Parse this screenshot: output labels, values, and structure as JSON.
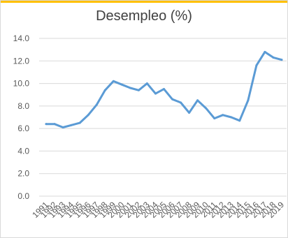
{
  "chart_data": {
    "type": "line",
    "title": "Desempleo (%)",
    "xlabel": "",
    "ylabel": "",
    "ylim": [
      0,
      14
    ],
    "yticks": [
      "0.0",
      "2.0",
      "4.0",
      "6.0",
      "8.0",
      "10.0",
      "12.0",
      "14.0"
    ],
    "grid": true,
    "legend": "none",
    "x": [
      "1991",
      "1992",
      "1993",
      "1994",
      "1995",
      "1996",
      "1997",
      "1998",
      "1999",
      "2000",
      "2001",
      "2002",
      "2003",
      "2004",
      "2005",
      "2006",
      "2007",
      "2008",
      "2009",
      "2010",
      "2011",
      "2012",
      "2013",
      "2014",
      "2015",
      "2016",
      "2017",
      "2018",
      "2019"
    ],
    "series": [
      {
        "values": [
          6.4,
          6.4,
          6.1,
          6.3,
          6.5,
          7.2,
          8.1,
          9.4,
          10.2,
          9.9,
          9.6,
          9.4,
          10.0,
          9.1,
          9.5,
          8.6,
          8.3,
          7.4,
          8.5,
          7.8,
          6.9,
          7.2,
          7.0,
          6.7,
          8.5,
          11.6,
          12.8,
          12.3,
          12.1
        ]
      }
    ],
    "colors": {
      "line": "#5b9bd5",
      "grid": "#d9d9d9",
      "text": "#595959",
      "title": "#404040",
      "top_border": "#ffc000"
    }
  }
}
